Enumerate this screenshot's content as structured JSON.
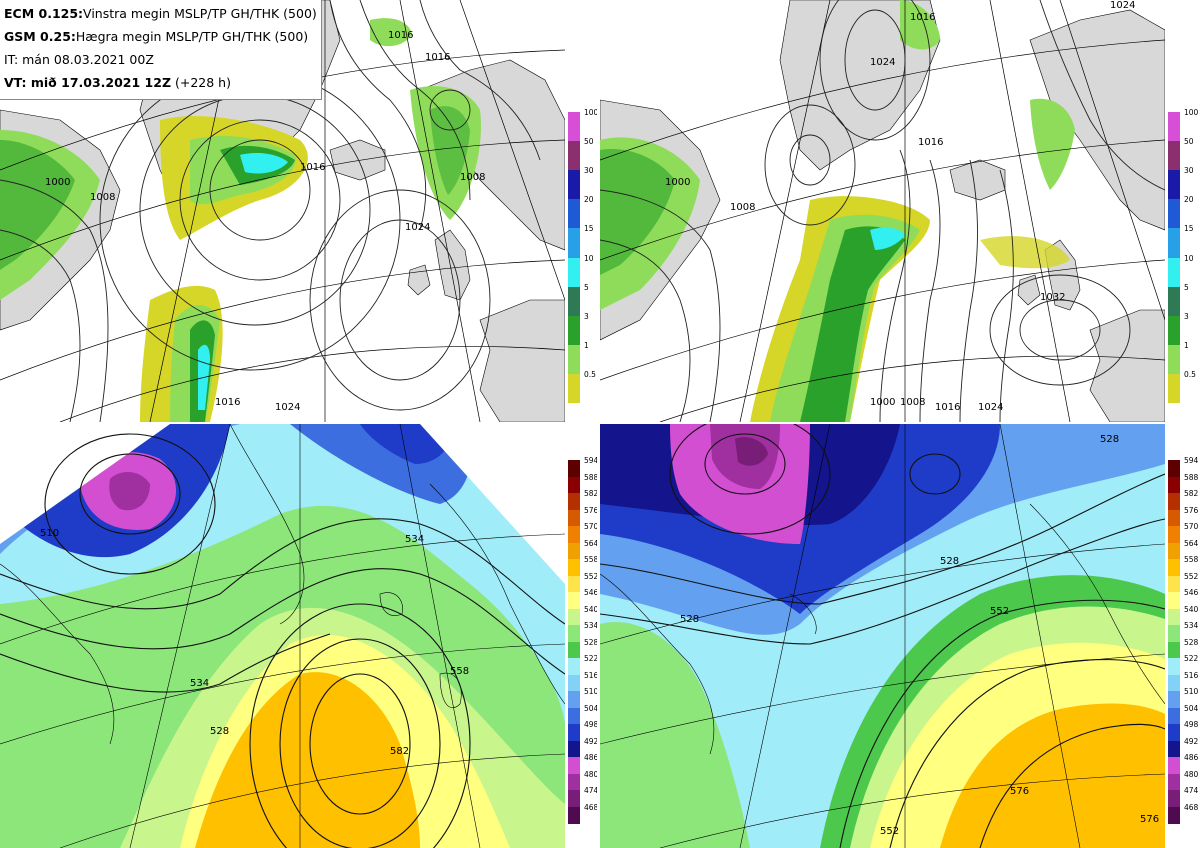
{
  "info": {
    "ecm_model": "ECM 0.125:",
    "ecm_desc": "Vinstra megin MSLP/TP GH/THK (500)",
    "gsm_model": "GSM 0.25:",
    "gsm_desc": "Hægra megin MSLP/TP GH/THK (500)",
    "it_line": "IT: mán 08.03.2021 00Z",
    "vt_label": "VT: mið 17.03.2021 12Z",
    "vt_lead": "(+228 h)"
  },
  "precip_colorbar": {
    "ticks": [
      "100",
      "50",
      "30",
      "20",
      "15",
      "10",
      "5",
      "3",
      "1",
      "0.5"
    ],
    "colors": [
      "#d64fd6",
      "#8b2f6f",
      "#1a1aa8",
      "#1e5ad6",
      "#28a0e8",
      "#33f0f0",
      "#2e7a55",
      "#2aa12a",
      "#8fdc5a",
      "#d6d628"
    ]
  },
  "thk_colorbar": {
    "ticks": [
      "594",
      "588",
      "582",
      "576",
      "570",
      "564",
      "558",
      "552",
      "546",
      "540",
      "534",
      "528",
      "522",
      "516",
      "510",
      "504",
      "498",
      "492",
      "486",
      "480",
      "474",
      "468"
    ],
    "colors": [
      "#5c0000",
      "#8a0000",
      "#b53000",
      "#d65a00",
      "#f08000",
      "#f0a000",
      "#ffc000",
      "#ffe34a",
      "#ffff80",
      "#c8f58c",
      "#8ce67a",
      "#4cc84c",
      "#a0ecf8",
      "#82d2f8",
      "#64a0f0",
      "#3c6ee0",
      "#1e3cc8",
      "#14148c",
      "#d24fd2",
      "#a02fa0",
      "#781e78",
      "#500a50"
    ]
  },
  "contours": {
    "ecm_mslp": [
      "1016",
      "1008",
      "1000",
      "1016",
      "1024",
      "1016",
      "1008",
      "1016",
      "1024"
    ],
    "gsm_mslp": [
      "1024",
      "1016",
      "1000",
      "1008",
      "1016",
      "1000",
      "1008",
      "1016",
      "1024",
      "1032",
      "1024"
    ],
    "ecm_gh": [
      "510",
      "534",
      "534",
      "528",
      "558",
      "582"
    ],
    "gsm_gh": [
      "528",
      "528",
      "528",
      "552",
      "552",
      "576",
      "576"
    ]
  },
  "map_colors": {
    "land": "#d8d8d8",
    "sea": "#ffffff",
    "coast": "#000000"
  }
}
